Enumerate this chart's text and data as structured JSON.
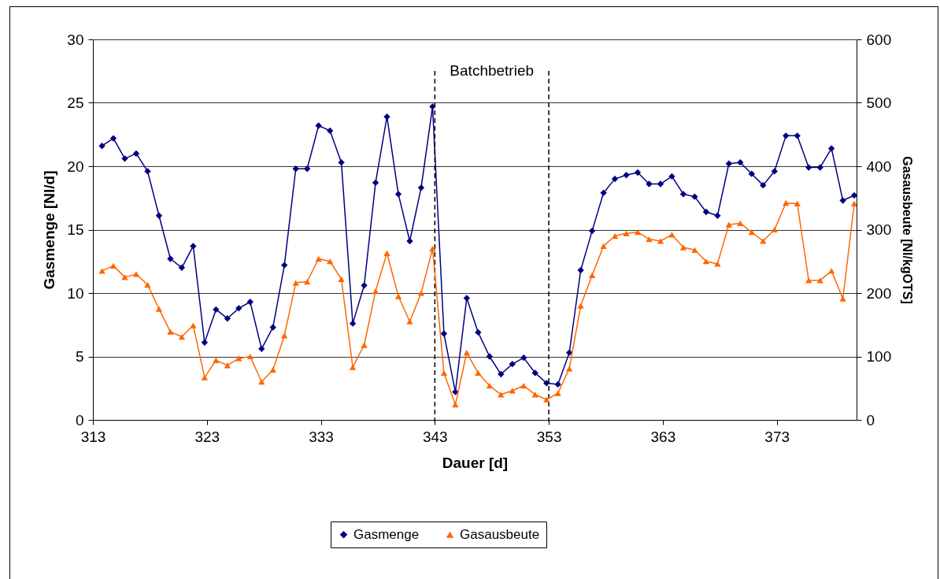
{
  "chart_data": {
    "type": "line",
    "xlabel": "Dauer [d]",
    "ylabel": "Gasmenge [Nl/d]",
    "y2label": "Gasausbeute [Nl/kgOTS]",
    "x": [
      313.8,
      314.8,
      315.8,
      316.8,
      317.8,
      318.8,
      319.8,
      320.8,
      321.8,
      322.8,
      323.8,
      324.8,
      325.8,
      326.8,
      327.8,
      328.8,
      329.8,
      330.8,
      331.8,
      332.8,
      333.8,
      334.8,
      335.8,
      336.8,
      337.8,
      338.8,
      339.8,
      340.8,
      341.8,
      342.8,
      343.8,
      344.8,
      345.8,
      346.8,
      347.8,
      348.8,
      349.8,
      350.8,
      351.8,
      352.8,
      353.8,
      354.8,
      355.8,
      356.8,
      357.8,
      358.8,
      359.8,
      360.8,
      361.8,
      362.8,
      363.8,
      364.8,
      365.8,
      366.8,
      367.8,
      368.8,
      369.8,
      370.8,
      371.8,
      372.8,
      373.8,
      374.8,
      375.8,
      376.8,
      377.8,
      378.8,
      379.8
    ],
    "series": [
      {
        "name": "Gasmenge",
        "color": "#000080",
        "marker": "diamond",
        "values": [
          21.6,
          22.2,
          20.6,
          21.0,
          19.6,
          16.1,
          12.7,
          12.0,
          13.7,
          6.1,
          8.7,
          8.0,
          8.8,
          9.3,
          5.6,
          7.3,
          12.2,
          19.8,
          19.8,
          23.2,
          22.8,
          20.3,
          7.6,
          10.6,
          18.7,
          23.9,
          17.8,
          14.1,
          18.3,
          24.7,
          6.8,
          2.2,
          9.6,
          6.9,
          5.0,
          3.6,
          4.4,
          4.9,
          3.7,
          2.9,
          2.8,
          5.3,
          11.8,
          14.9,
          17.9,
          19.0,
          19.3,
          19.5,
          18.6,
          18.6,
          19.2,
          17.8,
          17.6,
          16.4,
          16.1,
          20.2,
          20.3,
          19.4,
          18.5,
          19.6,
          22.4,
          22.4,
          19.9,
          19.9,
          21.4,
          17.3,
          17.7
        ]
      },
      {
        "name": "Gasausbeute",
        "color": "#ff6600",
        "marker": "triangle",
        "axis": "y2",
        "values": [
          235,
          243,
          225,
          230,
          213,
          175,
          139,
          131,
          149,
          67,
          94,
          86,
          97,
          100,
          60,
          79,
          133,
          216,
          218,
          254,
          250,
          222,
          83,
          118,
          203,
          263,
          195,
          155,
          200,
          270,
          74,
          24,
          106,
          74,
          54,
          40,
          46,
          54,
          40,
          32,
          42,
          81,
          180,
          228,
          274,
          290,
          294,
          296,
          285,
          282,
          292,
          272,
          268,
          250,
          246,
          308,
          310,
          296,
          282,
          300,
          342,
          341,
          220,
          220,
          235,
          191,
          341
        ]
      }
    ],
    "xlim": [
      313,
      380
    ],
    "xticks": [
      313,
      323,
      333,
      343,
      353,
      363,
      373
    ],
    "ylim": [
      0,
      30
    ],
    "yticks": [
      0,
      5,
      10,
      15,
      20,
      25,
      30
    ],
    "y2lim": [
      0,
      600
    ],
    "y2ticks": [
      0,
      100,
      200,
      300,
      400,
      500,
      600
    ],
    "ref_lines": [
      {
        "axis": "x",
        "value": 343,
        "line_style": "dashed"
      },
      {
        "axis": "x",
        "value": 353,
        "line_style": "dashed"
      }
    ],
    "annotations": [
      "Batchbetrieb"
    ],
    "grid": "y",
    "legend": "bottom"
  }
}
